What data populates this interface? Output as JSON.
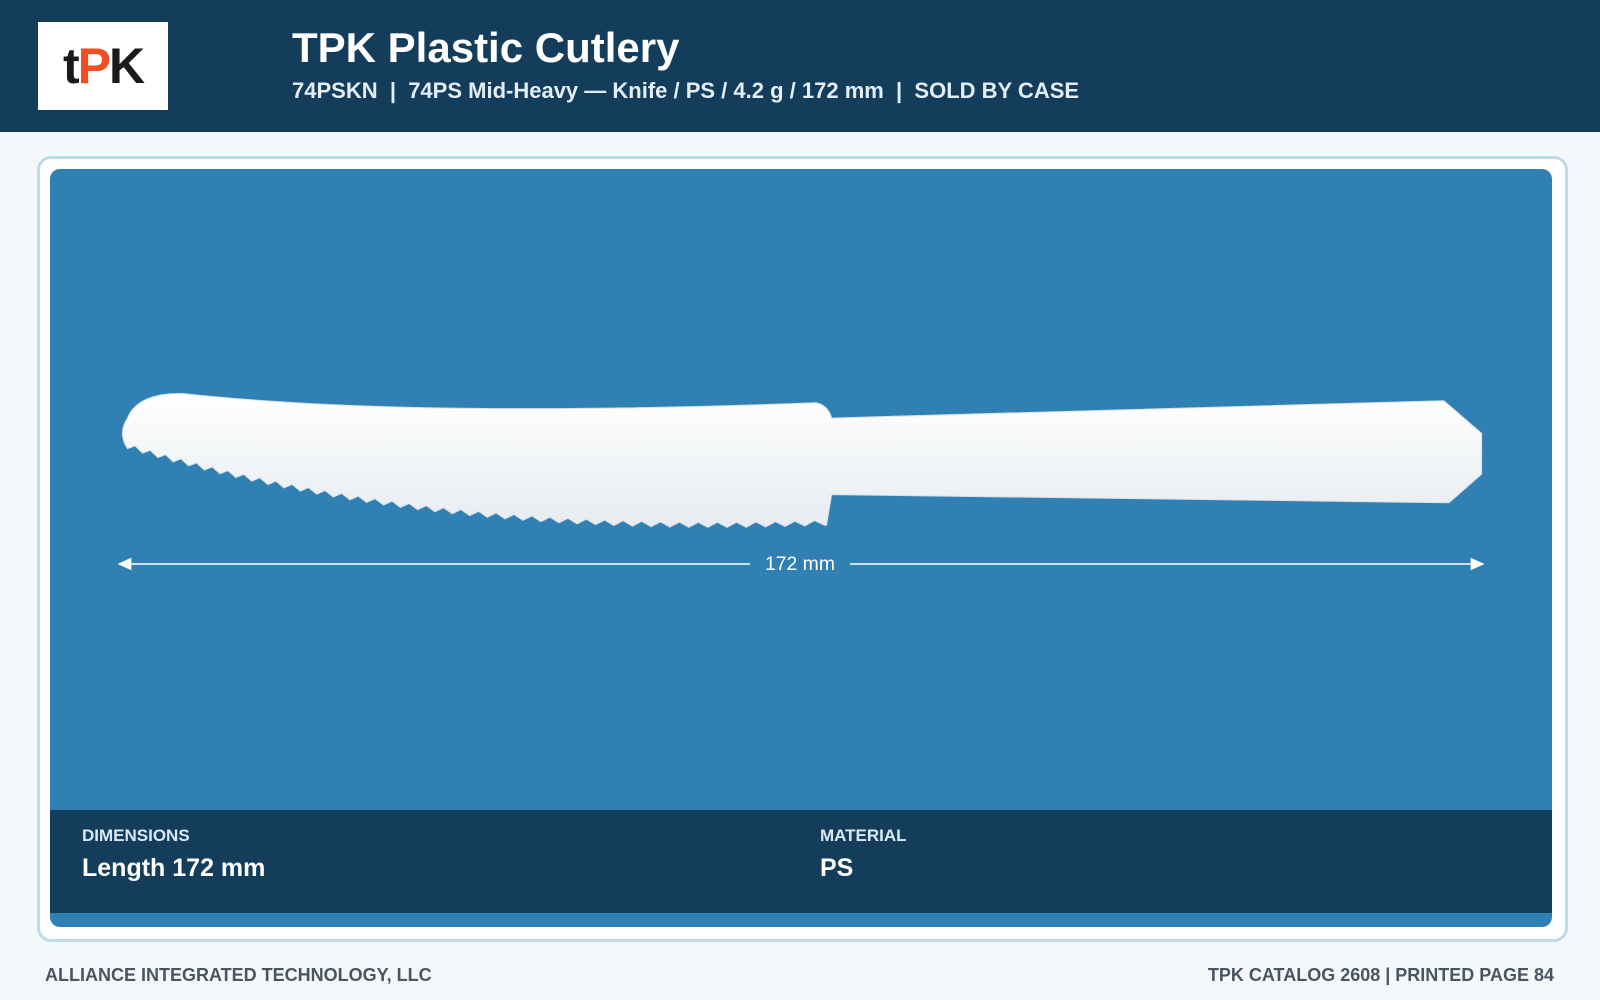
{
  "header": {
    "logo": [
      "t",
      "P",
      "K"
    ],
    "title": "TPK Plastic Cutlery",
    "subtitle": "74PSKN  |  74PS Mid-Heavy — Knife / PS / 4.2 g / 172 mm  |  SOLD BY CASE"
  },
  "product_image": {
    "dimension_label": "172 mm"
  },
  "specs": [
    {
      "label": "DIMENSIONS",
      "value": "Length 172 mm"
    },
    {
      "label": "MATERIAL",
      "value": "PS"
    }
  ],
  "footer": {
    "left": "ALLIANCE INTEGRATED TECHNOLOGY, LLC",
    "right": "TPK CATALOG 2608 | PRINTED PAGE 84"
  }
}
